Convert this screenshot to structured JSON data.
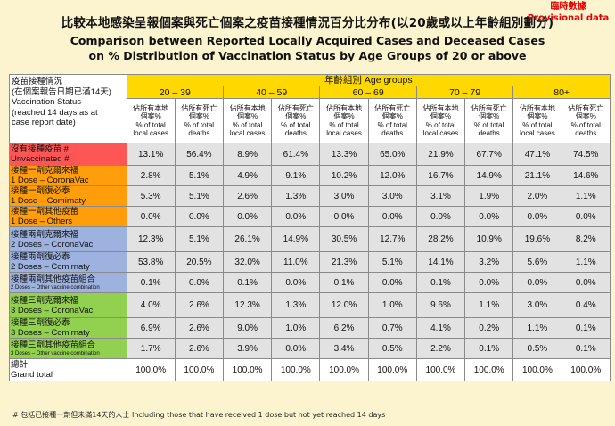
{
  "title_zh": "比較本地感染呈報個案與死亡個案之疫苗接種情況百分比分布(以20歲或以上年齡組別劃分)",
  "title_en_line1": "Comparison between Reported Locally Acquired Cases and Deceased Cases",
  "title_en_line2": "on % Distribution of Vaccination Status by Age Groups of 20 or above",
  "provisional_zh": "臨時數據",
  "provisional_en": "Provisional data",
  "table": {
    "status_header_lines": [
      "疫苗接種情況",
      "(在個案報告日期已滿14天)",
      "Vaccination Status",
      "(reached 14 days as at",
      "case report date)"
    ],
    "age_header": "年齡組別 Age groups",
    "age_groups": [
      "20 – 39",
      "40 – 59",
      "60 – 69",
      "70 – 79",
      "80+"
    ],
    "sub_local_lines": [
      "佔所有本地",
      "個案%",
      "% of total",
      "local cases"
    ],
    "sub_death_lines": [
      "佔所有死亡",
      "個案%",
      "% of total",
      "deaths"
    ],
    "colors": {
      "unvaccinated": "#fe5555",
      "one_dose": "#ff9d0a",
      "two_doses": "#9db2df",
      "three_doses": "#92d050",
      "header": "#ffd800",
      "values": "#e2e2e2",
      "total": "#ffffff",
      "background": "#fbf4cf"
    },
    "rows": [
      {
        "zh": "沒有接種疫苗 #",
        "en": "Unvaccinated #",
        "group": "unvaccinated",
        "values": [
          "13.1%",
          "56.4%",
          "8.9%",
          "61.4%",
          "13.3%",
          "65.0%",
          "21.9%",
          "67.7%",
          "47.1%",
          "74.5%"
        ]
      },
      {
        "zh": "接種一劑克爾來福",
        "en": "1 Dose – CoronaVac",
        "group": "one_dose",
        "values": [
          "2.8%",
          "5.1%",
          "4.9%",
          "9.1%",
          "10.2%",
          "12.0%",
          "16.7%",
          "14.9%",
          "21.1%",
          "14.6%"
        ]
      },
      {
        "zh": "接種一劑復必泰",
        "en": "1 Dose – Comirnaty",
        "group": "one_dose",
        "values": [
          "5.3%",
          "5.1%",
          "2.6%",
          "1.3%",
          "3.0%",
          "3.0%",
          "3.1%",
          "1.9%",
          "2.0%",
          "1.1%"
        ]
      },
      {
        "zh": "接種一劑其他疫苗",
        "en": "1 Dose – Others",
        "group": "one_dose",
        "values": [
          "0.0%",
          "0.0%",
          "0.0%",
          "0.0%",
          "0.0%",
          "0.0%",
          "0.0%",
          "0.0%",
          "0.0%",
          "0.0%"
        ]
      },
      {
        "zh": "接種兩劑克爾來福",
        "en": "2 Doses – CoronaVac",
        "group": "two_doses",
        "values": [
          "12.3%",
          "5.1%",
          "26.1%",
          "14.9%",
          "30.5%",
          "12.7%",
          "28.2%",
          "10.9%",
          "19.6%",
          "8.2%"
        ]
      },
      {
        "zh": "接種兩劑復必泰",
        "en": "2 Doses – Comirnaty",
        "group": "two_doses",
        "values": [
          "53.8%",
          "20.5%",
          "32.0%",
          "11.0%",
          "21.3%",
          "5.1%",
          "14.1%",
          "3.2%",
          "5.6%",
          "1.1%"
        ]
      },
      {
        "zh": "接種兩劑其他疫苗組合",
        "en": "2 Doses – Other vaccine combination",
        "group": "two_doses",
        "small": true,
        "values": [
          "0.1%",
          "0.0%",
          "0.1%",
          "0.0%",
          "0.1%",
          "0.0%",
          "0.1%",
          "0.0%",
          "0.0%",
          "0.0%"
        ]
      },
      {
        "zh": "接種三劑克爾來福",
        "en": "3 Doses – CoronaVac",
        "group": "three_doses",
        "values": [
          "4.0%",
          "2.6%",
          "12.3%",
          "1.3%",
          "12.0%",
          "1.0%",
          "9.6%",
          "1.1%",
          "3.0%",
          "0.4%"
        ]
      },
      {
        "zh": "接種三劑復必泰",
        "en": "3 Doses – Comirnaty",
        "group": "three_doses",
        "values": [
          "6.9%",
          "2.6%",
          "9.0%",
          "1.0%",
          "6.2%",
          "0.7%",
          "4.1%",
          "0.2%",
          "1.1%",
          "0.1%"
        ]
      },
      {
        "zh": "接種三劑其他疫苗組合",
        "en": "3 Doses – Other vaccine combination",
        "group": "three_doses",
        "small": true,
        "values": [
          "1.7%",
          "2.6%",
          "3.9%",
          "0.0%",
          "3.4%",
          "0.5%",
          "2.2%",
          "0.1%",
          "0.5%",
          "0.1%"
        ]
      },
      {
        "zh": "總計",
        "en": "Grand total",
        "group": "total",
        "values": [
          "100.0%",
          "100.0%",
          "100.0%",
          "100.0%",
          "100.0%",
          "100.0%",
          "100.0%",
          "100.0%",
          "100.0%",
          "100.0%"
        ]
      }
    ]
  },
  "footnote_zh": "# 包括已接種一劑但未滿14天的人士",
  "footnote_en": "Including those that have received 1 dose but not yet reached 14 days"
}
